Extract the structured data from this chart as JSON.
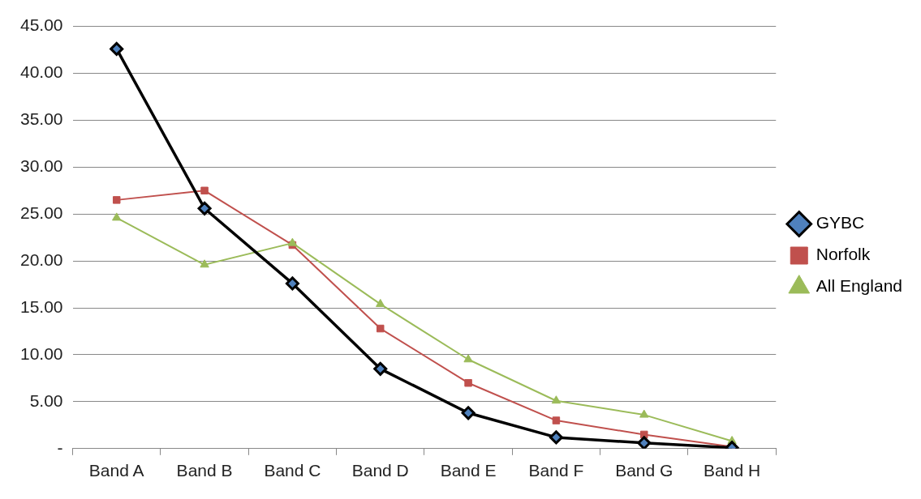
{
  "chart_data": {
    "type": "line",
    "categories": [
      "Band A",
      "Band B",
      "Band C",
      "Band D",
      "Band E",
      "Band F",
      "Band G",
      "Band H"
    ],
    "series": [
      {
        "name": "GYBC",
        "color": "#000000",
        "marker": "diamond",
        "values": [
          42.6,
          25.6,
          17.6,
          8.5,
          3.8,
          1.2,
          0.6,
          0.1
        ]
      },
      {
        "name": "Norfolk",
        "color": "#c0504d",
        "marker": "square",
        "values": [
          26.5,
          27.5,
          21.7,
          12.8,
          7.0,
          3.0,
          1.5,
          0.2
        ]
      },
      {
        "name": "All England",
        "color": "#9bbb59",
        "marker": "triangle",
        "values": [
          24.6,
          19.6,
          21.9,
          15.4,
          9.5,
          5.1,
          3.6,
          0.8
        ]
      }
    ],
    "ylim": [
      0,
      45
    ],
    "yticks": [
      {
        "value": 0,
        "label": "-"
      },
      {
        "value": 5,
        "label": "5.00"
      },
      {
        "value": 10,
        "label": "10.00"
      },
      {
        "value": 15,
        "label": "15.00"
      },
      {
        "value": 20,
        "label": "20.00"
      },
      {
        "value": 25,
        "label": "25.00"
      },
      {
        "value": 30,
        "label": "30.00"
      },
      {
        "value": 35,
        "label": "35.00"
      },
      {
        "value": 40,
        "label": "40.00"
      },
      {
        "value": 45,
        "label": "45.00"
      }
    ],
    "grid": "y",
    "legend": "right"
  }
}
